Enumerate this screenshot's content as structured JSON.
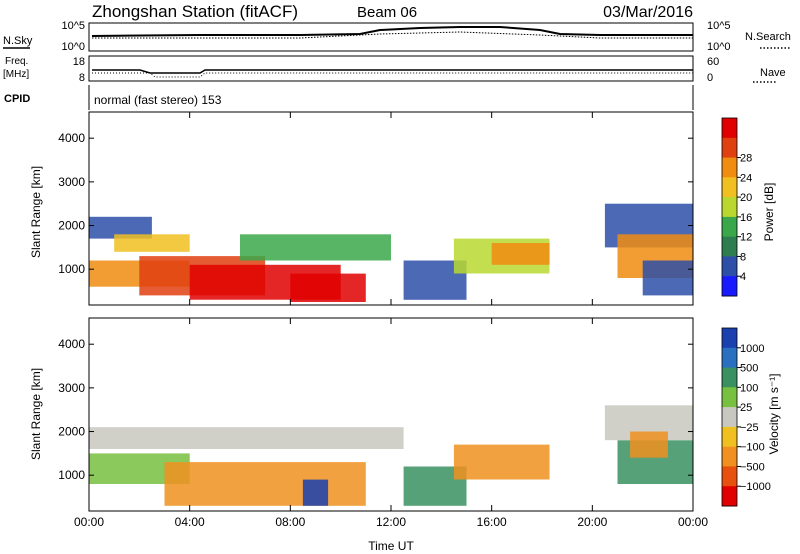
{
  "header": {
    "title": "Zhongshan Station (fitACF)",
    "beam": "Beam 06",
    "date": "03/Mar/2016"
  },
  "panels": {
    "nsky": {
      "left_label": "N.Sky",
      "left_ticks": [
        "10^5",
        "10^0"
      ],
      "right_ticks": [
        "10^5",
        "10^0"
      ],
      "right_label": "N.Search"
    },
    "freq": {
      "left_label_1": "Freq.",
      "left_label_2": "[MHz]",
      "left_ticks": [
        "18",
        "8"
      ],
      "right_ticks": [
        "60",
        "0"
      ],
      "right_label": "Nave"
    },
    "cpid": {
      "label": "CPID",
      "text": "normal (fast stereo) 153"
    }
  },
  "colors": {
    "power": [
      "#1a1aff",
      "#2d4fa8",
      "#2e7d4f",
      "#3aa84a",
      "#b8d830",
      "#f0c020",
      "#f08c10",
      "#e04010",
      "#e00000"
    ],
    "velocity": [
      "#1a40b0",
      "#2a70c0",
      "#3a9060",
      "#78c040",
      "#c8c8c0",
      "#f0c020",
      "#f09020",
      "#e85010",
      "#e00000"
    ]
  },
  "chart_data": [
    {
      "type": "heatmap",
      "title": "",
      "xlabel": "Time UT",
      "ylabel": "Slant Range [km]",
      "x_ticks": [
        "00:00",
        "04:00",
        "08:00",
        "12:00",
        "16:00",
        "20:00",
        "00:00"
      ],
      "xlim": [
        0,
        24
      ],
      "y_ticks": [
        1000,
        2000,
        3000,
        4000
      ],
      "ylim": [
        180,
        4600
      ],
      "colorbar_label": "Power [dB]",
      "colorbar_ticks": [
        "4",
        "8",
        "12",
        "16",
        "20",
        "24",
        "28"
      ],
      "regions": [
        {
          "x": [
            0.0,
            2.5
          ],
          "y": [
            1700,
            2200
          ],
          "level": 1
        },
        {
          "x": [
            1.0,
            4.0
          ],
          "y": [
            1400,
            1800
          ],
          "level": 5
        },
        {
          "x": [
            0.0,
            4.0
          ],
          "y": [
            600,
            1200
          ],
          "level": 6
        },
        {
          "x": [
            2.0,
            7.0
          ],
          "y": [
            400,
            1300
          ],
          "level": 7
        },
        {
          "x": [
            4.0,
            10.0
          ],
          "y": [
            300,
            1100
          ],
          "level": 8
        },
        {
          "x": [
            6.0,
            12.0
          ],
          "y": [
            1200,
            1800
          ],
          "level": 3
        },
        {
          "x": [
            8.0,
            11.0
          ],
          "y": [
            250,
            900
          ],
          "level": 8
        },
        {
          "x": [
            12.5,
            15.0
          ],
          "y": [
            300,
            1200
          ],
          "level": 1
        },
        {
          "x": [
            14.5,
            18.3
          ],
          "y": [
            900,
            1700
          ],
          "level": 4
        },
        {
          "x": [
            16.0,
            18.3
          ],
          "y": [
            1100,
            1600
          ],
          "level": 6
        },
        {
          "x": [
            20.5,
            24.0
          ],
          "y": [
            1500,
            2500
          ],
          "level": 1
        },
        {
          "x": [
            21.0,
            24.0
          ],
          "y": [
            800,
            1800
          ],
          "level": 6
        },
        {
          "x": [
            22.0,
            24.0
          ],
          "y": [
            400,
            1200
          ],
          "level": 1
        }
      ]
    },
    {
      "type": "heatmap",
      "title": "",
      "xlabel": "Time UT",
      "ylabel": "Slant Range [km]",
      "x_ticks": [
        "00:00",
        "04:00",
        "08:00",
        "12:00",
        "16:00",
        "20:00",
        "00:00"
      ],
      "xlim": [
        0,
        24
      ],
      "y_ticks": [
        1000,
        2000,
        3000,
        4000
      ],
      "ylim": [
        180,
        4600
      ],
      "colorbar_label": "Velocity [m s⁻¹]",
      "colorbar_ticks": [
        "1000",
        "500",
        "100",
        "25",
        "−25",
        "−100",
        "−500",
        "−1000"
      ],
      "regions": [
        {
          "x": [
            0.0,
            12.5
          ],
          "y": [
            1600,
            2100
          ],
          "level": 4
        },
        {
          "x": [
            0.0,
            4.0
          ],
          "y": [
            800,
            1500
          ],
          "level": 3
        },
        {
          "x": [
            3.0,
            11.0
          ],
          "y": [
            300,
            1300
          ],
          "level": 6
        },
        {
          "x": [
            8.5,
            9.5
          ],
          "y": [
            300,
            900
          ],
          "level": 0
        },
        {
          "x": [
            12.5,
            15.0
          ],
          "y": [
            300,
            1200
          ],
          "level": 2
        },
        {
          "x": [
            14.5,
            18.3
          ],
          "y": [
            900,
            1700
          ],
          "level": 6
        },
        {
          "x": [
            20.5,
            24.0
          ],
          "y": [
            1800,
            2600
          ],
          "level": 4
        },
        {
          "x": [
            21.0,
            24.0
          ],
          "y": [
            800,
            1800
          ],
          "level": 2
        },
        {
          "x": [
            21.5,
            23.0
          ],
          "y": [
            1400,
            2000
          ],
          "level": 6
        }
      ]
    }
  ]
}
